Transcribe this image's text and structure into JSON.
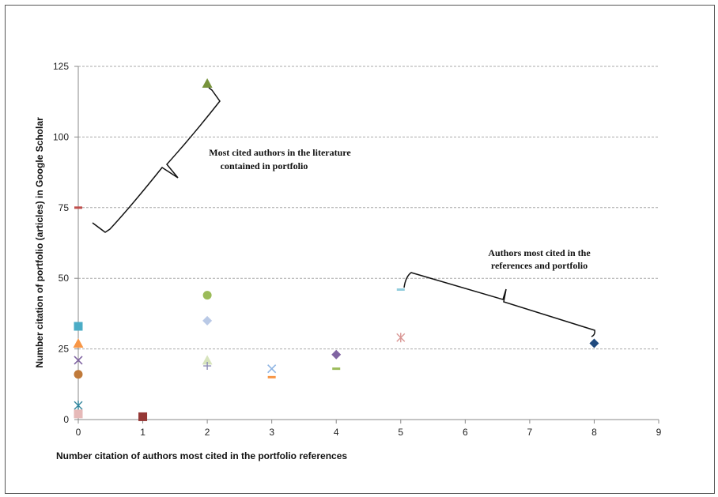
{
  "chart_data": {
    "type": "scatter",
    "xlabel": "Number citation of authors most cited in the portfolio references",
    "ylabel": "Number citation of portfolio (articles) in Google Scholar",
    "xlim": [
      0,
      9
    ],
    "ylim": [
      0,
      125
    ],
    "xticks": [
      0,
      1,
      2,
      3,
      4,
      5,
      6,
      7,
      8,
      9
    ],
    "yticks": [
      0,
      25,
      50,
      75,
      100,
      125
    ],
    "grid": "horizontal-dashed",
    "points": [
      {
        "x": 0,
        "y": 75,
        "marker": "dash",
        "color": "#c0504d"
      },
      {
        "x": 0,
        "y": 33,
        "marker": "square",
        "color": "#4bacc6"
      },
      {
        "x": 0,
        "y": 27,
        "marker": "triangle",
        "color": "#f79646"
      },
      {
        "x": 0,
        "y": 21,
        "marker": "x",
        "color": "#8064a2"
      },
      {
        "x": 0,
        "y": 16,
        "marker": "circle",
        "color": "#c07a3a"
      },
      {
        "x": 0,
        "y": 5,
        "marker": "star",
        "color": "#31859c"
      },
      {
        "x": 0,
        "y": 2,
        "marker": "square",
        "color": "#e6b9b8"
      },
      {
        "x": 1,
        "y": 1,
        "marker": "square",
        "color": "#953735"
      },
      {
        "x": 2,
        "y": 119,
        "marker": "triangle",
        "color": "#77933c"
      },
      {
        "x": 2,
        "y": 44,
        "marker": "circle",
        "color": "#9bbb59"
      },
      {
        "x": 2,
        "y": 35,
        "marker": "diamond",
        "color": "#b9c9e6"
      },
      {
        "x": 2,
        "y": 21,
        "marker": "triangle",
        "color": "#d7e4bd"
      },
      {
        "x": 2,
        "y": 19,
        "marker": "plus",
        "color": "#8c8cb4"
      },
      {
        "x": 3,
        "y": 18,
        "marker": "x",
        "color": "#8eb4e3"
      },
      {
        "x": 3,
        "y": 15,
        "marker": "dash",
        "color": "#f79646"
      },
      {
        "x": 4,
        "y": 23,
        "marker": "diamond",
        "color": "#8064a2"
      },
      {
        "x": 4,
        "y": 18,
        "marker": "dash",
        "color": "#9bbb59"
      },
      {
        "x": 5,
        "y": 46,
        "marker": "dash",
        "color": "#93cddd"
      },
      {
        "x": 5,
        "y": 29,
        "marker": "star",
        "color": "#d99694"
      },
      {
        "x": 8,
        "y": 27,
        "marker": "diamond",
        "color": "#1f497d"
      }
    ],
    "annotations": [
      {
        "lines": [
          "Most cited authors in the literature",
          "contained in portfolio"
        ]
      },
      {
        "lines": [
          "Authors most cited in the",
          "references and portfolio"
        ]
      }
    ]
  }
}
